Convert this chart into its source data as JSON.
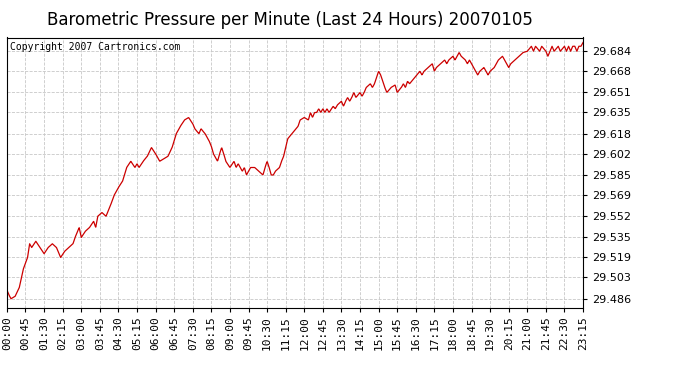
{
  "title": "Barometric Pressure per Minute (Last 24 Hours) 20070105",
  "copyright": "Copyright 2007 Cartronics.com",
  "line_color": "#cc0000",
  "background_color": "#ffffff",
  "grid_color": "#c8c8c8",
  "yticks": [
    29.486,
    29.503,
    29.519,
    29.535,
    29.552,
    29.569,
    29.585,
    29.602,
    29.618,
    29.635,
    29.651,
    29.668,
    29.684
  ],
  "ylim": [
    29.479,
    29.695
  ],
  "xlim": [
    0,
    1395
  ],
  "xtick_labels": [
    "00:00",
    "00:45",
    "01:30",
    "02:15",
    "03:00",
    "03:45",
    "04:30",
    "05:15",
    "06:00",
    "06:45",
    "07:30",
    "08:15",
    "09:00",
    "09:45",
    "10:30",
    "11:15",
    "12:00",
    "12:45",
    "13:30",
    "14:15",
    "15:00",
    "15:45",
    "16:30",
    "17:15",
    "18:00",
    "18:45",
    "19:30",
    "20:15",
    "21:00",
    "21:45",
    "22:30",
    "23:15"
  ],
  "title_fontsize": 12,
  "tick_fontsize": 8,
  "copyright_fontsize": 7,
  "keypoints": [
    [
      0,
      29.493
    ],
    [
      5,
      29.489
    ],
    [
      10,
      29.486
    ],
    [
      20,
      29.488
    ],
    [
      30,
      29.495
    ],
    [
      40,
      29.51
    ],
    [
      50,
      29.519
    ],
    [
      55,
      29.53
    ],
    [
      60,
      29.527
    ],
    [
      70,
      29.532
    ],
    [
      80,
      29.527
    ],
    [
      90,
      29.522
    ],
    [
      100,
      29.527
    ],
    [
      110,
      29.53
    ],
    [
      120,
      29.527
    ],
    [
      130,
      29.519
    ],
    [
      140,
      29.524
    ],
    [
      150,
      29.527
    ],
    [
      160,
      29.53
    ],
    [
      165,
      29.535
    ],
    [
      175,
      29.543
    ],
    [
      180,
      29.535
    ],
    [
      190,
      29.54
    ],
    [
      200,
      29.543
    ],
    [
      210,
      29.548
    ],
    [
      215,
      29.543
    ],
    [
      220,
      29.552
    ],
    [
      230,
      29.555
    ],
    [
      240,
      29.552
    ],
    [
      250,
      29.56
    ],
    [
      260,
      29.569
    ],
    [
      270,
      29.575
    ],
    [
      280,
      29.58
    ],
    [
      290,
      29.591
    ],
    [
      300,
      29.596
    ],
    [
      310,
      29.591
    ],
    [
      315,
      29.594
    ],
    [
      320,
      29.591
    ],
    [
      330,
      29.596
    ],
    [
      340,
      29.6
    ],
    [
      350,
      29.607
    ],
    [
      360,
      29.602
    ],
    [
      370,
      29.596
    ],
    [
      380,
      29.598
    ],
    [
      390,
      29.6
    ],
    [
      400,
      29.607
    ],
    [
      410,
      29.618
    ],
    [
      420,
      29.624
    ],
    [
      430,
      29.629
    ],
    [
      440,
      29.631
    ],
    [
      450,
      29.626
    ],
    [
      455,
      29.622
    ],
    [
      465,
      29.618
    ],
    [
      470,
      29.622
    ],
    [
      480,
      29.618
    ],
    [
      490,
      29.612
    ],
    [
      495,
      29.608
    ],
    [
      500,
      29.602
    ],
    [
      510,
      29.596
    ],
    [
      515,
      29.602
    ],
    [
      520,
      29.607
    ],
    [
      525,
      29.602
    ],
    [
      530,
      29.596
    ],
    [
      540,
      29.591
    ],
    [
      550,
      29.596
    ],
    [
      555,
      29.591
    ],
    [
      560,
      29.594
    ],
    [
      565,
      29.591
    ],
    [
      570,
      29.588
    ],
    [
      575,
      29.591
    ],
    [
      580,
      29.585
    ],
    [
      590,
      29.591
    ],
    [
      600,
      29.591
    ],
    [
      610,
      29.588
    ],
    [
      620,
      29.585
    ],
    [
      625,
      29.591
    ],
    [
      630,
      29.596
    ],
    [
      635,
      29.591
    ],
    [
      640,
      29.585
    ],
    [
      645,
      29.585
    ],
    [
      650,
      29.588
    ],
    [
      660,
      29.591
    ],
    [
      665,
      29.596
    ],
    [
      670,
      29.6
    ],
    [
      675,
      29.607
    ],
    [
      680,
      29.614
    ],
    [
      690,
      29.618
    ],
    [
      700,
      29.622
    ],
    [
      705,
      29.624
    ],
    [
      710,
      29.629
    ],
    [
      720,
      29.631
    ],
    [
      730,
      29.629
    ],
    [
      735,
      29.635
    ],
    [
      740,
      29.631
    ],
    [
      745,
      29.635
    ],
    [
      750,
      29.635
    ],
    [
      755,
      29.638
    ],
    [
      760,
      29.635
    ],
    [
      765,
      29.638
    ],
    [
      770,
      29.635
    ],
    [
      775,
      29.638
    ],
    [
      780,
      29.635
    ],
    [
      790,
      29.64
    ],
    [
      795,
      29.638
    ],
    [
      800,
      29.641
    ],
    [
      810,
      29.644
    ],
    [
      815,
      29.64
    ],
    [
      820,
      29.644
    ],
    [
      825,
      29.647
    ],
    [
      830,
      29.644
    ],
    [
      835,
      29.647
    ],
    [
      840,
      29.651
    ],
    [
      845,
      29.647
    ],
    [
      855,
      29.651
    ],
    [
      860,
      29.648
    ],
    [
      865,
      29.651
    ],
    [
      870,
      29.655
    ],
    [
      880,
      29.658
    ],
    [
      885,
      29.655
    ],
    [
      890,
      29.658
    ],
    [
      900,
      29.668
    ],
    [
      905,
      29.665
    ],
    [
      910,
      29.66
    ],
    [
      915,
      29.655
    ],
    [
      920,
      29.651
    ],
    [
      930,
      29.655
    ],
    [
      940,
      29.657
    ],
    [
      945,
      29.651
    ],
    [
      955,
      29.655
    ],
    [
      960,
      29.658
    ],
    [
      965,
      29.655
    ],
    [
      970,
      29.66
    ],
    [
      975,
      29.658
    ],
    [
      980,
      29.66
    ],
    [
      990,
      29.664
    ],
    [
      1000,
      29.668
    ],
    [
      1005,
      29.665
    ],
    [
      1010,
      29.668
    ],
    [
      1020,
      29.671
    ],
    [
      1030,
      29.674
    ],
    [
      1035,
      29.668
    ],
    [
      1040,
      29.671
    ],
    [
      1050,
      29.674
    ],
    [
      1060,
      29.677
    ],
    [
      1065,
      29.674
    ],
    [
      1070,
      29.677
    ],
    [
      1080,
      29.68
    ],
    [
      1085,
      29.677
    ],
    [
      1090,
      29.68
    ],
    [
      1095,
      29.683
    ],
    [
      1100,
      29.68
    ],
    [
      1110,
      29.677
    ],
    [
      1115,
      29.674
    ],
    [
      1120,
      29.677
    ],
    [
      1125,
      29.674
    ],
    [
      1130,
      29.671
    ],
    [
      1135,
      29.668
    ],
    [
      1140,
      29.665
    ],
    [
      1145,
      29.668
    ],
    [
      1155,
      29.671
    ],
    [
      1160,
      29.668
    ],
    [
      1165,
      29.665
    ],
    [
      1170,
      29.668
    ],
    [
      1180,
      29.671
    ],
    [
      1185,
      29.674
    ],
    [
      1190,
      29.677
    ],
    [
      1200,
      29.68
    ],
    [
      1210,
      29.674
    ],
    [
      1215,
      29.671
    ],
    [
      1220,
      29.674
    ],
    [
      1230,
      29.677
    ],
    [
      1240,
      29.68
    ],
    [
      1250,
      29.683
    ],
    [
      1260,
      29.684
    ],
    [
      1270,
      29.688
    ],
    [
      1275,
      29.684
    ],
    [
      1280,
      29.688
    ],
    [
      1290,
      29.684
    ],
    [
      1295,
      29.688
    ],
    [
      1305,
      29.684
    ],
    [
      1310,
      29.68
    ],
    [
      1315,
      29.684
    ],
    [
      1320,
      29.688
    ],
    [
      1325,
      29.684
    ],
    [
      1335,
      29.688
    ],
    [
      1340,
      29.684
    ],
    [
      1350,
      29.688
    ],
    [
      1355,
      29.684
    ],
    [
      1360,
      29.688
    ],
    [
      1365,
      29.684
    ],
    [
      1370,
      29.688
    ],
    [
      1375,
      29.688
    ],
    [
      1380,
      29.684
    ],
    [
      1385,
      29.688
    ],
    [
      1390,
      29.688
    ],
    [
      1395,
      29.691
    ]
  ]
}
